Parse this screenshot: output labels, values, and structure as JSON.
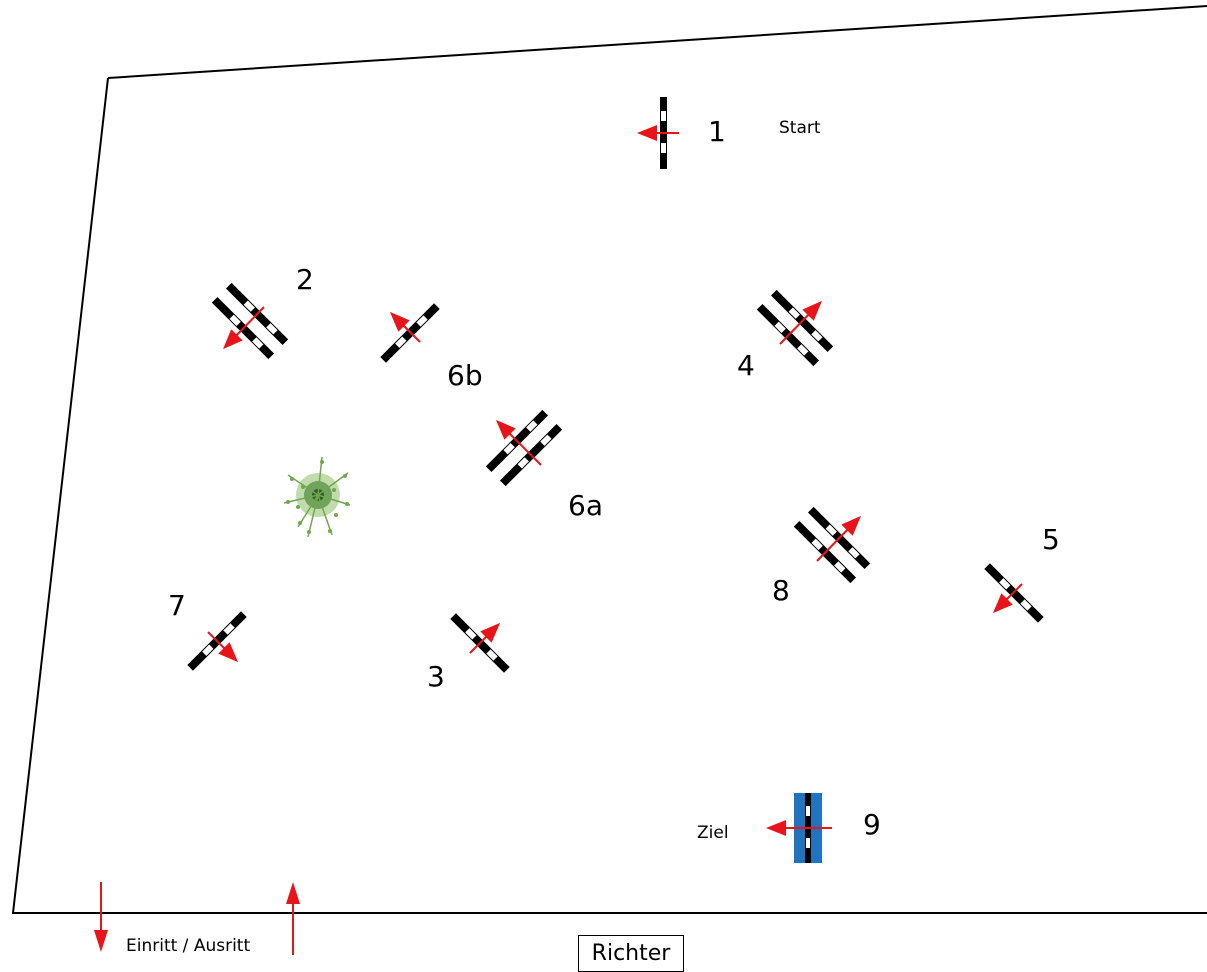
{
  "labels": {
    "start": "Start",
    "finish": "Ziel",
    "entry_exit": "Einritt / Ausritt",
    "judge": "Richter"
  },
  "obstacles": [
    {
      "number": "1",
      "type": "vertical"
    },
    {
      "number": "2",
      "type": "oxer"
    },
    {
      "number": "3",
      "type": "vertical"
    },
    {
      "number": "4",
      "type": "oxer"
    },
    {
      "number": "5",
      "type": "vertical"
    },
    {
      "number": "6a",
      "type": "oxer"
    },
    {
      "number": "6b",
      "type": "vertical"
    },
    {
      "number": "7",
      "type": "vertical"
    },
    {
      "number": "8",
      "type": "oxer"
    },
    {
      "number": "9",
      "type": "water-vertical"
    }
  ],
  "colors": {
    "arrow": "#e8141a",
    "water": "#1f73bf",
    "pole": "#000000",
    "bush": "#6fa84a"
  },
  "icons": [
    "entry-arrow-icon",
    "exit-arrow-icon",
    "bush-icon"
  ]
}
